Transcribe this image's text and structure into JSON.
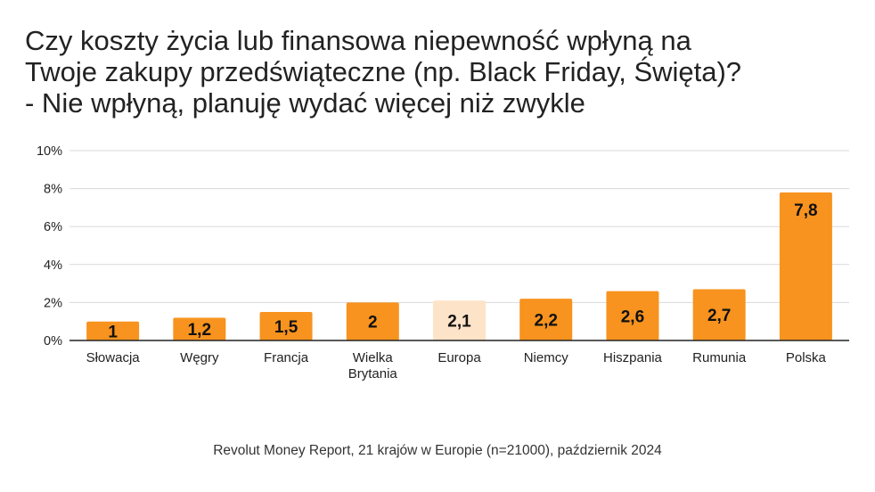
{
  "title_lines": [
    "Czy koszty życia lub finansowa niepewność wpłyną na",
    "Twoje zakupy przedświąteczne (np. Black Friday, Święta)?",
    "- Nie wpłyną, planuję wydać więcej niż zwykle"
  ],
  "source": "Revolut Money Report, 21 krajów w Europie (n=21000), październik 2024",
  "chart_data": {
    "type": "bar",
    "categories": [
      [
        "Słowacja"
      ],
      [
        "Węgry"
      ],
      [
        "Francja"
      ],
      [
        "Wielka",
        "Brytania"
      ],
      [
        "Europa"
      ],
      [
        "Niemcy"
      ],
      [
        "Hiszpania"
      ],
      [
        "Rumunia"
      ],
      [
        "Polska"
      ]
    ],
    "values": [
      1,
      1.2,
      1.5,
      2,
      2.1,
      2.2,
      2.6,
      2.7,
      7.8
    ],
    "data_labels": [
      "1",
      "1,2",
      "1,5",
      "2",
      "2,1",
      "2,2",
      "2,6",
      "2,7",
      "7,8"
    ],
    "highlight_index": 4,
    "yticks": [
      0,
      2,
      4,
      6,
      8,
      10
    ],
    "ytick_labels": [
      "0%",
      "2%",
      "4%",
      "6%",
      "8%",
      "10%"
    ],
    "ylim": [
      0,
      10
    ],
    "grid": true,
    "colors": {
      "bar": "#F7931E",
      "highlight": "#FDE3C8",
      "grid": "#D9D9D9",
      "axis": "#222222"
    }
  }
}
